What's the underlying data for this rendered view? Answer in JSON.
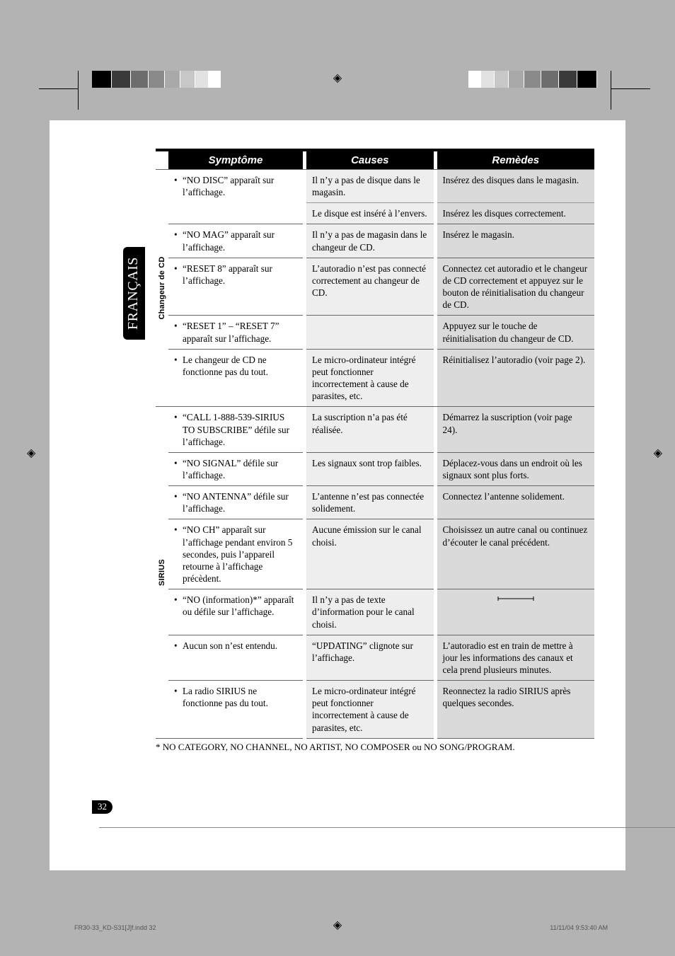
{
  "sidebar_lang": "FRANÇAIS",
  "page_number": "32",
  "footer_left": "FR30-33_KD-S31[J]f.indd   32",
  "footer_right": "11/11/04   9:53:40 AM",
  "headers": {
    "symptom": "Symptôme",
    "causes": "Causes",
    "remedies": "Remèdes"
  },
  "categories": {
    "cd": "Changeur de CD",
    "sirius": "SIRIUS"
  },
  "rows": {
    "cd": [
      {
        "s": "“NO DISC” apparaît sur l’affichage.",
        "c": "Il n’y a pas de disque dans le magasin.",
        "r": "Insérez des disques dans le magasin."
      },
      {
        "s": "",
        "c": "Le disque est inséré à l’envers.",
        "r": "Insérez les disques correctement."
      },
      {
        "s": "“NO MAG” apparaît sur l’affichage.",
        "c": "Il n’y a pas de magasin dans le changeur de CD.",
        "r": "Insérez le magasin."
      },
      {
        "s": "“RESET 8” apparaît sur l’affichage.",
        "c": "L’autoradio n’est pas connecté correctement au changeur de CD.",
        "r": "Connectez cet autoradio et le changeur de CD correctement et appuyez sur le bouton de réinitialisation du changeur de CD."
      },
      {
        "s": "“RESET 1” – “RESET 7” apparaît sur l’affichage.",
        "c": "",
        "r": "Appuyez sur le touche de réinitialisation du changeur de CD."
      },
      {
        "s": "Le changeur de CD ne fonctionne pas du tout.",
        "c": "Le micro-ordinateur intégré peut fonctionner incorrectement à cause de parasites, etc.",
        "r": "Réinitialisez l’autoradio (voir page 2)."
      }
    ],
    "sirius": [
      {
        "s": "“CALL 1-888-539-SIRIUS TO SUBSCRIBE” défile sur l’affichage.",
        "c": "La suscription n’a pas été réalisée.",
        "r": "Démarrez la suscription (voir page 24)."
      },
      {
        "s": "“NO SIGNAL” défile sur l’affichage.",
        "c": "Les signaux sont trop faibles.",
        "r": "Déplacez-vous dans un endroit où les signaux sont plus forts."
      },
      {
        "s": "“NO ANTENNA” défile sur l’affichage.",
        "c": "L’antenne n’est pas connectée solidement.",
        "r": "Connectez l’antenne solidement."
      },
      {
        "s": "“NO CH” apparaît sur l’affichage pendant environ 5 secondes, puis l’appareil retourne à l’affichage précèdent.",
        "c": "Aucune émission sur le canal choisi.",
        "r": "Choisissez un autre canal ou continuez d’écouter le canal précédent."
      },
      {
        "s": "“NO (information)*” apparaît ou défile sur l’affichage.",
        "c": "Il n’y a pas de texte d’information pour le canal choisi.",
        "r": "—"
      },
      {
        "s": "Aucun son n’est entendu.",
        "c": "“UPDATING” clignote sur l’affichage.",
        "r": "L’autoradio est en train de mettre à jour les informations des canaux et cela prend plusieurs minutes."
      },
      {
        "s": "La radio SIRIUS ne fonctionne pas du tout.",
        "c": "Le micro-ordinateur intégré peut fonctionner incorrectement à cause de parasites, etc.",
        "r": "Reonnectez la radio SIRIUS après quelques secondes."
      }
    ]
  },
  "footnote": "* NO CATEGORY, NO CHANNEL, NO ARTIST, NO COMPOSER ou NO SONG/PROGRAM.",
  "tick_colors": [
    "#000000",
    "#3a3a3a",
    "#6d6d6d",
    "#8a8a8a",
    "#a9a9a9",
    "#c7c7c7",
    "#e2e2e2",
    "#ffffff"
  ],
  "center_glyph": "◈"
}
